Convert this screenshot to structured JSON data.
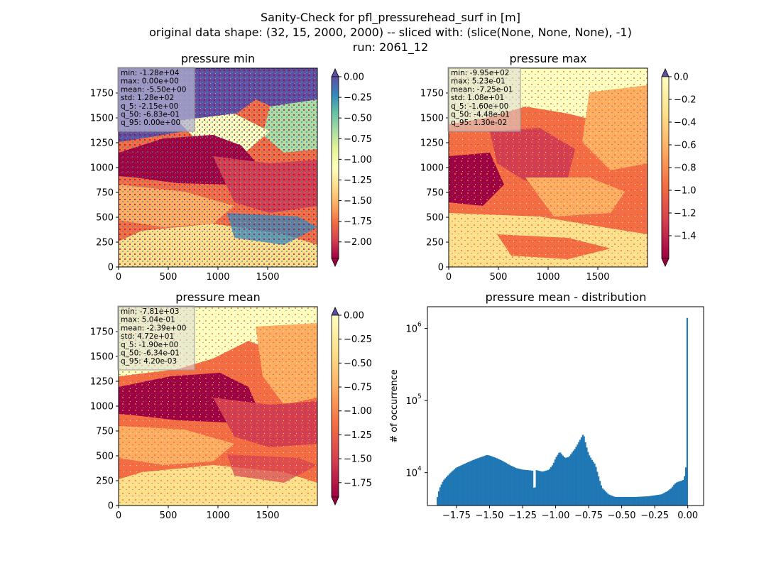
{
  "suptitle": [
    "Sanity-Check for pfl_pressurehead_surf in [m]",
    "original data shape: (32, 15, 2000, 2000) -- sliced with: (slice(None, None, None), -1)",
    "run: 2061_12"
  ],
  "colors": {
    "histogram_bar": "#1f77b4",
    "stats_box": "#b0b0d0",
    "cmap": "Spectral"
  },
  "chart_data": [
    {
      "type": "heatmap",
      "title": "pressure min",
      "colormap": "Spectral",
      "x_ticks": [
        "0",
        "500",
        "1000",
        "1500"
      ],
      "y_ticks": [
        "0",
        "250",
        "500",
        "750",
        "1000",
        "1250",
        "1500",
        "1750"
      ],
      "xlim": [
        0,
        2000
      ],
      "ylim": [
        0,
        2000
      ],
      "colorbar": {
        "vmin": -2.2,
        "vmax": 0.0,
        "extend": "both",
        "ticks": [
          0.0,
          -0.25,
          -0.5,
          -0.75,
          -1.0,
          -1.25,
          -1.5,
          -1.75,
          -2.0
        ],
        "tick_labels": [
          "0.00",
          "−0.25",
          "−0.50",
          "−0.75",
          "−1.00",
          "−1.25",
          "−1.50",
          "−1.75",
          "−2.00"
        ]
      },
      "stats": [
        "min: -1.28e+04",
        "max: 0.00e+00",
        "mean: -5.50e+00",
        "std: 1.28e+02",
        "q_5: -2.15e+00",
        "q_50: -6.83e-01",
        "q_95: 0.00e+00"
      ]
    },
    {
      "type": "heatmap",
      "title": "pressure max",
      "colormap": "Spectral",
      "x_ticks": [
        "0",
        "500",
        "1000",
        "1500"
      ],
      "y_ticks": [
        "0",
        "250",
        "500",
        "750",
        "1000",
        "1250",
        "1500",
        "1750"
      ],
      "xlim": [
        0,
        2000
      ],
      "ylim": [
        0,
        2000
      ],
      "colorbar": {
        "vmin": -1.6,
        "vmax": 0.0,
        "extend": "both",
        "ticks": [
          0.0,
          -0.2,
          -0.4,
          -0.6,
          -0.8,
          -1.0,
          -1.2,
          -1.4
        ],
        "tick_labels": [
          "0.0",
          "−0.2",
          "−0.4",
          "−0.6",
          "−0.8",
          "−1.0",
          "−1.2",
          "−1.4"
        ]
      },
      "stats": [
        "min: -9.95e+02",
        "max: 5.23e-01",
        "mean: -7.25e-01",
        "std: 1.08e+01",
        "q_5: -1.60e+00",
        "q_50: -4.48e-01",
        "q_95: 1.30e-02"
      ]
    },
    {
      "type": "heatmap",
      "title": "pressure mean",
      "colormap": "Spectral",
      "x_ticks": [
        "0",
        "500",
        "1000",
        "1500"
      ],
      "y_ticks": [
        "0",
        "250",
        "500",
        "750",
        "1000",
        "1250",
        "1500",
        "1750"
      ],
      "xlim": [
        0,
        2000
      ],
      "ylim": [
        0,
        2000
      ],
      "colorbar": {
        "vmin": -1.9,
        "vmax": 0.0,
        "extend": "both",
        "ticks": [
          0.0,
          -0.25,
          -0.5,
          -0.75,
          -1.0,
          -1.25,
          -1.5,
          -1.75
        ],
        "tick_labels": [
          "0.00",
          "−0.25",
          "−0.50",
          "−0.75",
          "−1.00",
          "−1.25",
          "−1.50",
          "−1.75"
        ]
      },
      "stats": [
        "min: -7.81e+03",
        "max: 5.04e-01",
        "mean: -2.39e+00",
        "std: 4.72e+01",
        "q_5: -1.90e+00",
        "q_50: -6.34e-01",
        "q_95: 4.20e-03"
      ]
    },
    {
      "type": "bar",
      "title": "pressure mean - distribution",
      "ylabel": "# of occurrence",
      "xlabel": "",
      "yscale": "log",
      "xlim": [
        -1.97,
        0.12
      ],
      "ylim": [
        3500,
        2000000
      ],
      "x_ticks": [
        -1.75,
        -1.5,
        -1.25,
        -1.0,
        -0.75,
        -0.5,
        -0.25,
        0.0
      ],
      "x_tick_labels": [
        "−1.75",
        "−1.50",
        "−1.25",
        "−1.00",
        "−0.75",
        "−0.50",
        "−0.25",
        "0.00"
      ],
      "y_ticks": [
        10000,
        100000,
        1000000
      ],
      "y_tick_labels": [
        "10",
        "10",
        "10"
      ],
      "y_tick_exponents": [
        "4",
        "5",
        "6"
      ],
      "bin_range": [
        -1.9,
        0.0
      ],
      "bin_count": 190,
      "profile": [
        [
          -1.9,
          4200
        ],
        [
          -1.88,
          6000
        ],
        [
          -1.85,
          7800
        ],
        [
          -1.8,
          9800
        ],
        [
          -1.75,
          11800
        ],
        [
          -1.7,
          13000
        ],
        [
          -1.65,
          14300
        ],
        [
          -1.6,
          15600
        ],
        [
          -1.55,
          16800
        ],
        [
          -1.52,
          17600
        ],
        [
          -1.5,
          17300
        ],
        [
          -1.45,
          16000
        ],
        [
          -1.4,
          14500
        ],
        [
          -1.35,
          12800
        ],
        [
          -1.3,
          11600
        ],
        [
          -1.25,
          11000
        ],
        [
          -1.2,
          10800
        ],
        [
          -1.17,
          10600
        ],
        [
          -1.16,
          3600
        ],
        [
          -1.15,
          10900
        ],
        [
          -1.1,
          10300
        ],
        [
          -1.05,
          11000
        ],
        [
          -1.02,
          13000
        ],
        [
          -1.0,
          16000
        ],
        [
          -0.97,
          19500
        ],
        [
          -0.93,
          16000
        ],
        [
          -0.9,
          16500
        ],
        [
          -0.85,
          22000
        ],
        [
          -0.8,
          32000
        ],
        [
          -0.79,
          35000
        ],
        [
          -0.77,
          24000
        ],
        [
          -0.75,
          18000
        ],
        [
          -0.72,
          14500
        ],
        [
          -0.7,
          13000
        ],
        [
          -0.68,
          9500
        ],
        [
          -0.65,
          6200
        ],
        [
          -0.6,
          5000
        ],
        [
          -0.55,
          4600
        ],
        [
          -0.5,
          4600
        ],
        [
          -0.4,
          4600
        ],
        [
          -0.3,
          4700
        ],
        [
          -0.2,
          5000
        ],
        [
          -0.15,
          5600
        ],
        [
          -0.12,
          6200
        ],
        [
          -0.1,
          7000
        ],
        [
          -0.08,
          7400
        ],
        [
          -0.05,
          7700
        ],
        [
          -0.03,
          8000
        ],
        [
          -0.02,
          10000
        ],
        [
          -0.01,
          14000
        ],
        [
          -0.005,
          19000
        ],
        [
          0.0,
          1400000
        ]
      ]
    }
  ]
}
